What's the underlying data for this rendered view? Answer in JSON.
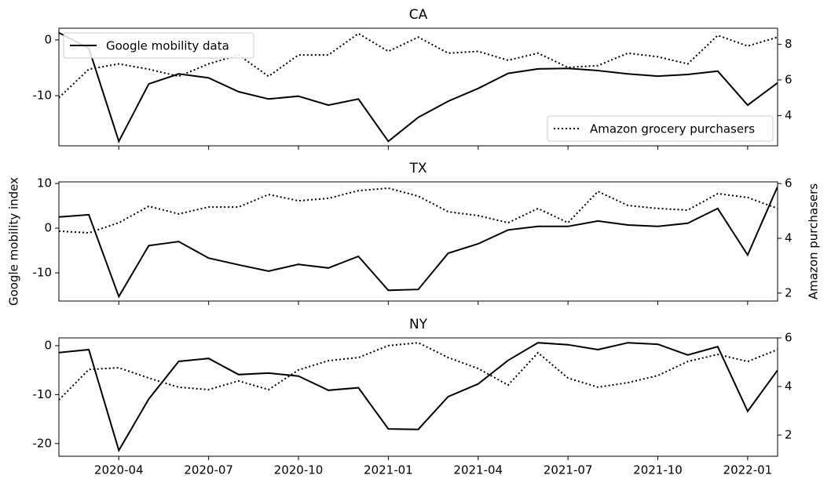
{
  "chart_data": [
    {
      "type": "line",
      "title": "CA",
      "x": [
        "2020-02",
        "2020-03",
        "2020-04",
        "2020-05",
        "2020-06",
        "2020-07",
        "2020-08",
        "2020-09",
        "2020-10",
        "2020-11",
        "2020-12",
        "2021-01",
        "2021-02",
        "2021-03",
        "2021-04",
        "2021-05",
        "2021-06",
        "2021-07",
        "2021-08",
        "2021-09",
        "2021-10",
        "2021-11",
        "2021-12",
        "2022-01",
        "2022-02"
      ],
      "xlim": [
        "2020-02",
        "2022-02"
      ],
      "xticks": [
        "2020-04",
        "2020-07",
        "2020-10",
        "2021-01",
        "2021-04",
        "2021-07",
        "2021-10",
        "2022-01"
      ],
      "ylim": [
        -19,
        2.1
      ],
      "yticks": [
        -10,
        0
      ],
      "y2lim": [
        2.3,
        8.9
      ],
      "y2ticks": [
        4,
        6,
        8
      ],
      "series": [
        {
          "name": "Google mobility data",
          "color": "#000000",
          "style": "solid",
          "legend": "upper left",
          "values": [
            1.3,
            -1.5,
            -18.2,
            -7.9,
            -6.1,
            -6.8,
            -9.3,
            -10.6,
            -10.1,
            -11.7,
            -10.6,
            -18.2,
            -13.9,
            -11,
            -8.7,
            -6,
            -5.2,
            -5.1,
            -5.5,
            -6.1,
            -6.5,
            -6.2,
            -5.6,
            -11.7,
            -7.7
          ]
        },
        {
          "name": "Amazon grocery purchasers",
          "color": "#000000",
          "style": "dotted",
          "axis": "y2",
          "legend": "lower right",
          "values": [
            5.0,
            6.6,
            6.9,
            6.6,
            6.2,
            6.9,
            7.4,
            6.2,
            7.4,
            7.4,
            8.6,
            7.6,
            8.4,
            7.5,
            7.6,
            7.1,
            7.5,
            6.7,
            6.8,
            7.5,
            7.3,
            6.9,
            8.5,
            7.9,
            8.4
          ]
        }
      ]
    },
    {
      "type": "line",
      "title": "TX",
      "ylabel": "Google mobility index",
      "y2label": "Amazon purchasers",
      "x": [
        "2020-02",
        "2020-03",
        "2020-04",
        "2020-05",
        "2020-06",
        "2020-07",
        "2020-08",
        "2020-09",
        "2020-10",
        "2020-11",
        "2020-12",
        "2021-01",
        "2021-02",
        "2021-03",
        "2021-04",
        "2021-05",
        "2021-06",
        "2021-07",
        "2021-08",
        "2021-09",
        "2021-10",
        "2021-11",
        "2021-12",
        "2022-01",
        "2022-02"
      ],
      "xlim": [
        "2020-02",
        "2022-02"
      ],
      "xticks": [
        "2020-04",
        "2020-07",
        "2020-10",
        "2021-01",
        "2021-04",
        "2021-07",
        "2021-10",
        "2022-01"
      ],
      "ylim": [
        -16.3,
        10.35
      ],
      "yticks": [
        -10,
        0,
        10
      ],
      "y2lim": [
        1.71,
        6.06
      ],
      "y2ticks": [
        2,
        4,
        6
      ],
      "series": [
        {
          "color": "#000000",
          "style": "solid",
          "values": [
            2.5,
            3,
            -15.3,
            -3.9,
            -3,
            -6.7,
            -8.2,
            -9.6,
            -8.1,
            -8.9,
            -6.3,
            -13.9,
            -13.7,
            -5.6,
            -3.5,
            -0.4,
            0.4,
            0.4,
            1.6,
            0.7,
            0.4,
            1.1,
            4.4,
            -6,
            9.3
          ]
        },
        {
          "color": "#000000",
          "style": "dotted",
          "axis": "y2",
          "values": [
            4.26,
            4.2,
            4.57,
            5.17,
            4.89,
            5.14,
            5.14,
            5.6,
            5.37,
            5.46,
            5.74,
            5.83,
            5.54,
            4.97,
            4.83,
            4.57,
            5.09,
            4.57,
            5.71,
            5.2,
            5.09,
            5.03,
            5.63,
            5.49,
            5.09
          ]
        }
      ]
    },
    {
      "type": "line",
      "title": "NY",
      "x": [
        "2020-02",
        "2020-03",
        "2020-04",
        "2020-05",
        "2020-06",
        "2020-07",
        "2020-08",
        "2020-09",
        "2020-10",
        "2020-11",
        "2020-12",
        "2021-01",
        "2021-02",
        "2021-03",
        "2021-04",
        "2021-05",
        "2021-06",
        "2021-07",
        "2021-08",
        "2021-09",
        "2021-10",
        "2021-11",
        "2021-12",
        "2022-01",
        "2022-02"
      ],
      "xlim": [
        "2020-02",
        "2022-02"
      ],
      "xticks": [
        "2020-04",
        "2020-07",
        "2020-10",
        "2021-01",
        "2021-04",
        "2021-07",
        "2021-10",
        "2022-01"
      ],
      "ylim": [
        -22.6,
        1.6
      ],
      "yticks": [
        -20,
        -10,
        0
      ],
      "y2lim": [
        1.13,
        6.0
      ],
      "y2ticks": [
        2,
        4,
        6
      ],
      "series": [
        {
          "color": "#000000",
          "style": "solid",
          "values": [
            -1.4,
            -0.8,
            -21.4,
            -10.9,
            -3.2,
            -2.6,
            -5.9,
            -5.6,
            -6.2,
            -9.1,
            -8.6,
            -17,
            -17.1,
            -10.4,
            -7.8,
            -3,
            0.6,
            0.2,
            -0.8,
            0.6,
            0.3,
            -1.9,
            -0.2,
            -13.4,
            -5
          ]
        },
        {
          "color": "#000000",
          "style": "dotted",
          "axis": "y2",
          "values": [
            3.45,
            4.7,
            4.77,
            4.35,
            3.97,
            3.87,
            4.23,
            3.87,
            4.68,
            5.06,
            5.19,
            5.68,
            5.8,
            5.19,
            4.74,
            4.06,
            5.39,
            4.35,
            3.97,
            4.16,
            4.45,
            5.03,
            5.32,
            5.03,
            5.52
          ]
        }
      ]
    }
  ]
}
